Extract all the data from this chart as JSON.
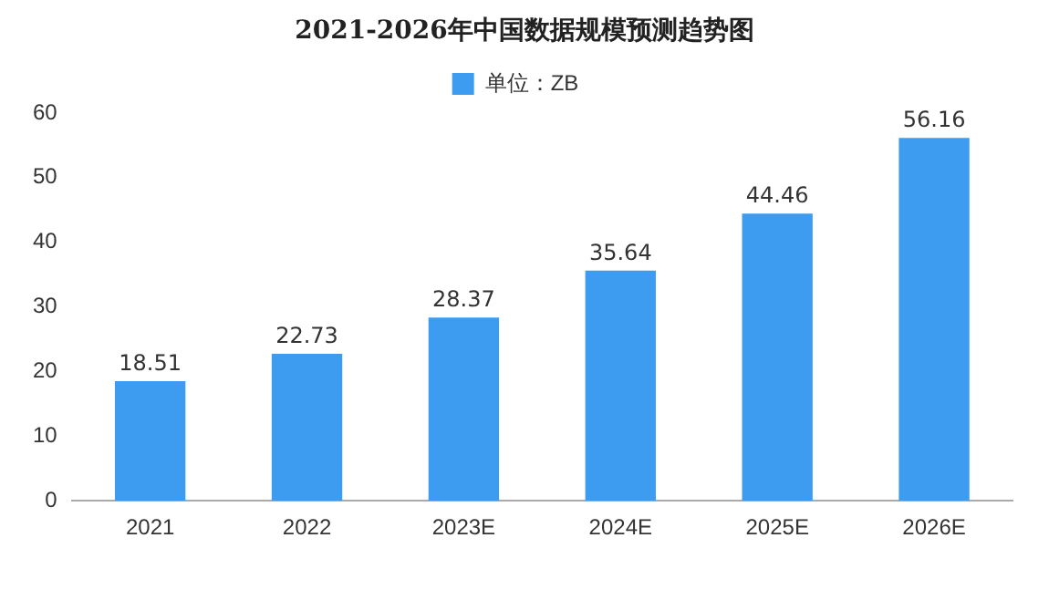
{
  "chart_data": {
    "type": "bar",
    "title": "2021-2026年中国数据规模预测趋势图",
    "categories": [
      "2021",
      "2022",
      "2023E",
      "2024E",
      "2025E",
      "2026E"
    ],
    "series": [
      {
        "name": "单位：ZB",
        "color": "#3d9cf0",
        "values": [
          18.51,
          22.73,
          28.37,
          35.64,
          44.46,
          56.16
        ]
      }
    ],
    "ylim": [
      0,
      60
    ],
    "yticks": [
      0,
      10,
      20,
      30,
      40,
      50,
      60
    ],
    "grid": false,
    "legend": "top",
    "data_labels": true
  }
}
